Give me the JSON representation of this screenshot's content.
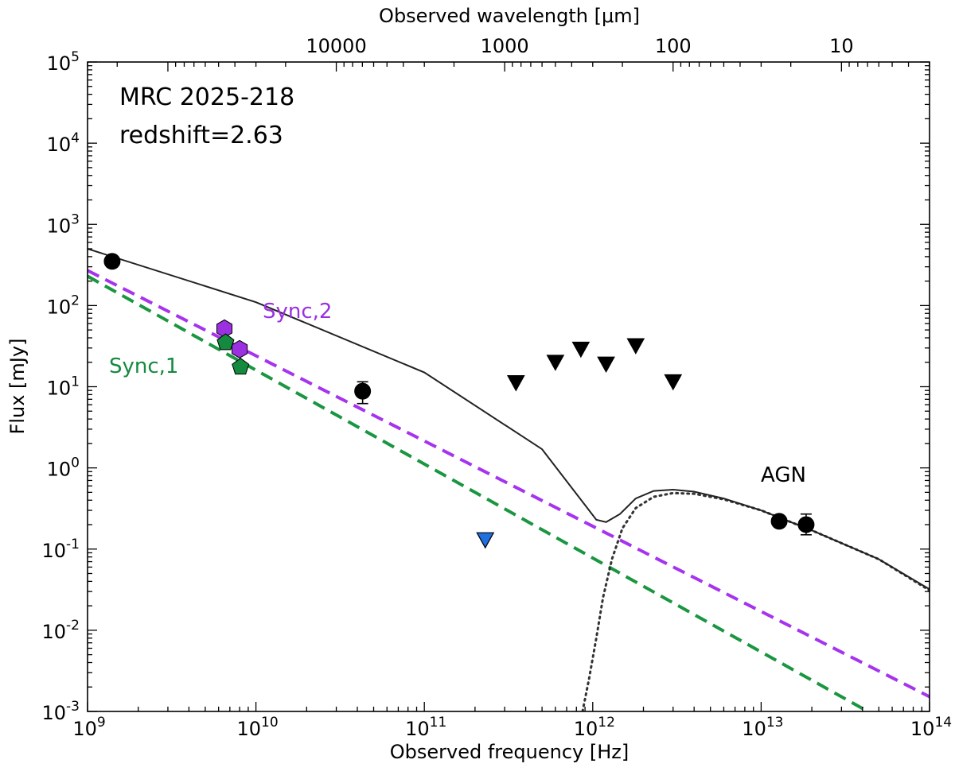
{
  "chart_data": {
    "type": "scatter",
    "title": "",
    "annotations": {
      "source_name": "MRC 2025-218",
      "redshift": "redshift=2.63",
      "sync1_label": "Sync,1",
      "sync2_label": "Sync,2",
      "agn_label": "AGN"
    },
    "xlabel": "Observed frequency [Hz]",
    "x2label": "Observed wavelength [μm]",
    "ylabel": "Flux [mJy]",
    "xscale": "log",
    "yscale": "log",
    "xlim": [
      1000000000.0,
      100000000000000.0
    ],
    "ylim": [
      0.001,
      100000
    ],
    "x_ticks": [
      {
        "value": 1000000000.0,
        "base": "10",
        "exp": "9"
      },
      {
        "value": 10000000000.0,
        "base": "10",
        "exp": "10"
      },
      {
        "value": 100000000000.0,
        "base": "10",
        "exp": "11"
      },
      {
        "value": 1000000000000.0,
        "base": "10",
        "exp": "12"
      },
      {
        "value": 10000000000000.0,
        "base": "10",
        "exp": "13"
      },
      {
        "value": 100000000000000.0,
        "base": "10",
        "exp": "14"
      }
    ],
    "y_ticks": [
      {
        "value": 0.001,
        "base": "10",
        "exp": "-3"
      },
      {
        "value": 0.01,
        "base": "10",
        "exp": "-2"
      },
      {
        "value": 0.1,
        "base": "10",
        "exp": "-1"
      },
      {
        "value": 1,
        "base": "10",
        "exp": "0"
      },
      {
        "value": 10,
        "base": "10",
        "exp": "1"
      },
      {
        "value": 100,
        "base": "10",
        "exp": "2"
      },
      {
        "value": 1000,
        "base": "10",
        "exp": "3"
      },
      {
        "value": 10000,
        "base": "10",
        "exp": "4"
      },
      {
        "value": 100000,
        "base": "10",
        "exp": "5"
      }
    ],
    "top_ticks": [
      {
        "wavelength_um": 10000,
        "label": "10000"
      },
      {
        "wavelength_um": 1000,
        "label": "1000"
      },
      {
        "wavelength_um": 100,
        "label": "100"
      },
      {
        "wavelength_um": 10,
        "label": "10"
      }
    ],
    "grid": false,
    "legend": "none",
    "colors": {
      "detection": "#000000",
      "sync1": "#1a9641",
      "sync1_marker": "#138a3e",
      "sync2": "#a633ee",
      "sync2_marker": "#9b30e0",
      "blue_limit": "#1f6fe0",
      "total_model": "#222222",
      "agn_model": "#333333"
    },
    "series": [
      {
        "kind": "model-total",
        "points": [
          [
            1000000000.0,
            500
          ],
          [
            10000000000.0,
            110
          ],
          [
            100000000000.0,
            15
          ],
          [
            500000000000.0,
            1.7
          ],
          [
            1050000000000.0,
            0.23
          ],
          [
            1200000000000.0,
            0.215
          ],
          [
            1450000000000.0,
            0.27
          ],
          [
            1800000000000.0,
            0.42
          ],
          [
            2300000000000.0,
            0.52
          ],
          [
            3000000000000.0,
            0.54
          ],
          [
            4000000000000.0,
            0.51
          ],
          [
            6000000000000.0,
            0.42
          ],
          [
            10000000000000.0,
            0.3
          ],
          [
            20000000000000.0,
            0.17
          ],
          [
            50000000000000.0,
            0.075
          ],
          [
            100000000000000.0,
            0.032
          ]
        ]
      },
      {
        "kind": "model-sync2",
        "points": [
          [
            1000000000.0,
            270
          ],
          [
            116000000000000.0,
            0.0013
          ]
        ]
      },
      {
        "kind": "model-sync1",
        "points": [
          [
            1000000000.0,
            230
          ],
          [
            43000000000000.0,
            0.001
          ]
        ]
      },
      {
        "kind": "model-agn",
        "points": [
          [
            870000000000.0,
            0.001
          ],
          [
            950000000000.0,
            0.0025
          ],
          [
            1050000000000.0,
            0.008
          ],
          [
            1150000000000.0,
            0.025
          ],
          [
            1300000000000.0,
            0.075
          ],
          [
            1500000000000.0,
            0.18
          ],
          [
            1800000000000.0,
            0.32
          ],
          [
            2300000000000.0,
            0.44
          ],
          [
            3000000000000.0,
            0.49
          ],
          [
            4000000000000.0,
            0.48
          ],
          [
            6000000000000.0,
            0.41
          ],
          [
            10000000000000.0,
            0.3
          ],
          [
            20000000000000.0,
            0.17
          ],
          [
            50000000000000.0,
            0.075
          ],
          [
            100000000000000.0,
            0.031
          ]
        ]
      },
      {
        "kind": "detections",
        "points": [
          {
            "x": 1400000000.0,
            "y": 350
          },
          {
            "x": 43000000000.0,
            "y": 8.8,
            "err": [
              6.2,
              11.5
            ]
          },
          {
            "x": 12800000000000.0,
            "y": 0.22,
            "err": [
              0.19,
              0.25
            ]
          },
          {
            "x": 18500000000000.0,
            "y": 0.2,
            "err": [
              0.15,
              0.27
            ]
          }
        ]
      },
      {
        "kind": "upper-limits",
        "points": [
          {
            "x": 350000000000.0,
            "y": 11.2
          },
          {
            "x": 600000000000.0,
            "y": 20
          },
          {
            "x": 850000000000.0,
            "y": 29
          },
          {
            "x": 1200000000000.0,
            "y": 19
          },
          {
            "x": 1800000000000.0,
            "y": 32
          },
          {
            "x": 3000000000000.0,
            "y": 11.5
          }
        ]
      },
      {
        "kind": "blue-upper-limit",
        "points": [
          {
            "x": 230000000000.0,
            "y": 0.13
          }
        ]
      },
      {
        "kind": "sync1-points",
        "points": [
          {
            "x": 6600000000.0,
            "y": 35
          },
          {
            "x": 8100000000.0,
            "y": 17.5
          }
        ]
      },
      {
        "kind": "sync2-points",
        "points": [
          {
            "x": 6500000000.0,
            "y": 52
          },
          {
            "x": 8000000000.0,
            "y": 29
          }
        ]
      }
    ]
  }
}
